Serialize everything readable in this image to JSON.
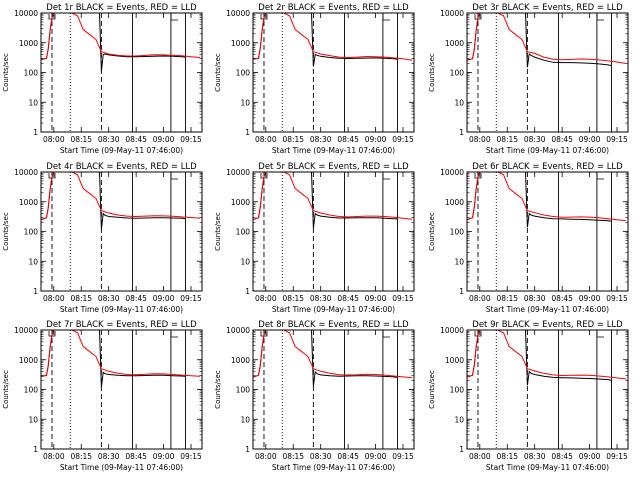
{
  "figure": {
    "panel_titles": [
      "Det 1r BLACK = Events, RED = LLD",
      "Det 2r BLACK = Events, RED = LLD",
      "Det 3r BLACK = Events, RED = LLD",
      "Det 4r BLACK = Events, RED = LLD",
      "Det 5r BLACK = Events, RED = LLD",
      "Det 6r BLACK = Events, RED = LLD",
      "Det 7r BLACK = Events, RED = LLD",
      "Det 8r BLACK = Events, RED = LLD",
      "Det 9r BLACK = Events, RED = LLD"
    ],
    "xlabel": "Start Time (09-May-11 07:46:00)",
    "ylabel": "Counts/sec",
    "colors": {
      "events": "#000000",
      "lld": "#ff0000",
      "axes": "#000000"
    }
  },
  "chart_data": {
    "type": "line",
    "yscale": "log",
    "xlim": [
      "07:53",
      "09:21"
    ],
    "ylim": [
      1,
      10000
    ],
    "x_ticks": [
      "08:00",
      "08:15",
      "08:30",
      "08:45",
      "09:00",
      "09:15"
    ],
    "y_ticks": [
      "1",
      "10",
      "100",
      "1000",
      "10000"
    ],
    "series": [
      {
        "name": "Events",
        "color": "#000000"
      },
      {
        "name": "LLD",
        "color": "#ff0000"
      }
    ],
    "vertical_markers": [
      {
        "time": "07:59",
        "style": "dashed"
      },
      {
        "time": "08:09",
        "style": "dotted"
      },
      {
        "time": "08:26",
        "style": "dashed"
      },
      {
        "time": "08:43",
        "style": "solid"
      },
      {
        "time": "09:04",
        "style": "solid"
      },
      {
        "time": "09:12",
        "style": "solid"
      }
    ],
    "panels": [
      {
        "events_x": [
          "07:53",
          "07:56",
          "07:57",
          "07:58",
          "07:59",
          "08:00",
          "08:02",
          "08:05",
          "08:10",
          "08:15",
          "08:20",
          "08:25",
          "08:26",
          "08:27",
          "08:28",
          "08:30",
          "08:35",
          "08:40",
          "08:45",
          "08:50",
          "08:55",
          "09:00",
          "09:05",
          "09:10",
          "09:12"
        ],
        "events_y": [
          270,
          300,
          650,
          2600,
          7000,
          10000,
          10000,
          10000,
          10000,
          10000,
          10000,
          10000,
          110,
          400,
          420,
          390,
          360,
          340,
          340,
          345,
          350,
          360,
          350,
          340,
          330
        ],
        "lld_x": [
          "07:53",
          "07:56",
          "07:57",
          "07:58",
          "07:59",
          "08:00",
          "08:02",
          "08:05",
          "08:10",
          "08:13",
          "08:16",
          "08:20",
          "08:23",
          "08:26",
          "08:30",
          "08:35",
          "08:40",
          "08:45",
          "08:50",
          "08:55",
          "09:00",
          "09:05",
          "09:10",
          "09:15",
          "09:20"
        ],
        "lld_y": [
          270,
          300,
          650,
          2600,
          7000,
          10000,
          10000,
          10000,
          10000,
          8000,
          2800,
          1800,
          1300,
          500,
          420,
          380,
          360,
          360,
          375,
          395,
          390,
          380,
          365,
          340,
          320
        ]
      },
      {
        "events_x": [
          "07:53",
          "07:56",
          "07:57",
          "07:58",
          "07:59",
          "08:00",
          "08:02",
          "08:05",
          "08:10",
          "08:15",
          "08:20",
          "08:25",
          "08:26",
          "08:27",
          "08:28",
          "08:30",
          "08:35",
          "08:40",
          "08:45",
          "08:50",
          "08:55",
          "09:00",
          "09:05",
          "09:10",
          "09:12"
        ],
        "events_y": [
          280,
          300,
          650,
          2600,
          7000,
          10000,
          10000,
          10000,
          10000,
          10000,
          10000,
          10000,
          160,
          400,
          380,
          350,
          320,
          300,
          295,
          300,
          305,
          310,
          300,
          290,
          280
        ],
        "lld_x": [
          "07:53",
          "07:56",
          "07:57",
          "07:58",
          "07:59",
          "08:00",
          "08:02",
          "08:05",
          "08:10",
          "08:13",
          "08:16",
          "08:20",
          "08:23",
          "08:26",
          "08:30",
          "08:35",
          "08:40",
          "08:45",
          "08:50",
          "08:55",
          "09:00",
          "09:05",
          "09:10",
          "09:15",
          "09:20"
        ],
        "lld_y": [
          280,
          300,
          650,
          2600,
          7000,
          10000,
          10000,
          10000,
          10000,
          8000,
          2800,
          1800,
          1300,
          500,
          420,
          370,
          330,
          320,
          330,
          345,
          340,
          330,
          310,
          290,
          260
        ]
      },
      {
        "events_x": [
          "07:53",
          "07:56",
          "07:57",
          "07:58",
          "07:59",
          "08:00",
          "08:02",
          "08:05",
          "08:10",
          "08:15",
          "08:20",
          "08:25",
          "08:26",
          "08:27",
          "08:28",
          "08:30",
          "08:35",
          "08:40",
          "08:45",
          "08:50",
          "08:55",
          "09:00",
          "09:05",
          "09:10",
          "09:12"
        ],
        "events_y": [
          260,
          290,
          600,
          2500,
          7000,
          10000,
          10000,
          10000,
          10000,
          10000,
          10000,
          10000,
          150,
          420,
          380,
          330,
          260,
          220,
          215,
          215,
          210,
          205,
          195,
          180,
          170
        ],
        "lld_x": [
          "07:53",
          "07:56",
          "07:57",
          "07:58",
          "07:59",
          "08:00",
          "08:02",
          "08:05",
          "08:10",
          "08:13",
          "08:16",
          "08:20",
          "08:23",
          "08:26",
          "08:30",
          "08:35",
          "08:40",
          "08:45",
          "08:50",
          "08:55",
          "09:00",
          "09:05",
          "09:10",
          "09:15",
          "09:20"
        ],
        "lld_y": [
          260,
          290,
          600,
          2500,
          7000,
          10000,
          10000,
          10000,
          10000,
          8000,
          2800,
          1800,
          1300,
          500,
          440,
          330,
          280,
          270,
          275,
          285,
          280,
          265,
          245,
          225,
          200
        ]
      },
      {
        "events_x": [
          "07:53",
          "07:56",
          "07:57",
          "07:58",
          "07:59",
          "08:00",
          "08:02",
          "08:05",
          "08:10",
          "08:15",
          "08:20",
          "08:25",
          "08:26",
          "08:27",
          "08:28",
          "08:30",
          "08:35",
          "08:40",
          "08:45",
          "08:50",
          "08:55",
          "09:00",
          "09:05",
          "09:10",
          "09:12"
        ],
        "events_y": [
          250,
          290,
          650,
          2600,
          7000,
          10000,
          10000,
          10000,
          10000,
          10000,
          10000,
          10000,
          120,
          400,
          350,
          320,
          300,
          285,
          280,
          285,
          290,
          290,
          285,
          280,
          270
        ],
        "lld_x": [
          "07:53",
          "07:56",
          "07:57",
          "07:58",
          "07:59",
          "08:00",
          "08:02",
          "08:05",
          "08:10",
          "08:13",
          "08:16",
          "08:20",
          "08:23",
          "08:26",
          "08:30",
          "08:35",
          "08:40",
          "08:45",
          "08:50",
          "08:55",
          "09:00",
          "09:05",
          "09:10",
          "09:15",
          "09:20"
        ],
        "lld_y": [
          250,
          290,
          650,
          2600,
          7000,
          10000,
          10000,
          10000,
          10000,
          8000,
          2800,
          1800,
          1300,
          500,
          420,
          360,
          330,
          320,
          330,
          340,
          335,
          325,
          310,
          295,
          280
        ]
      },
      {
        "events_x": [
          "07:53",
          "07:56",
          "07:57",
          "07:58",
          "07:59",
          "08:00",
          "08:02",
          "08:05",
          "08:10",
          "08:15",
          "08:20",
          "08:25",
          "08:26",
          "08:27",
          "08:28",
          "08:30",
          "08:35",
          "08:40",
          "08:45",
          "08:50",
          "08:55",
          "09:00",
          "09:05",
          "09:10",
          "09:12"
        ],
        "events_y": [
          250,
          290,
          650,
          2600,
          7000,
          10000,
          10000,
          10000,
          10000,
          10000,
          10000,
          10000,
          130,
          400,
          360,
          330,
          300,
          285,
          285,
          290,
          290,
          290,
          280,
          270,
          265
        ],
        "lld_x": [
          "07:53",
          "07:56",
          "07:57",
          "07:58",
          "07:59",
          "08:00",
          "08:02",
          "08:05",
          "08:10",
          "08:13",
          "08:16",
          "08:20",
          "08:23",
          "08:26",
          "08:30",
          "08:35",
          "08:40",
          "08:45",
          "08:50",
          "08:55",
          "09:00",
          "09:05",
          "09:10",
          "09:15",
          "09:20"
        ],
        "lld_y": [
          250,
          290,
          650,
          2600,
          7000,
          10000,
          10000,
          10000,
          10000,
          8000,
          2800,
          1800,
          1300,
          500,
          420,
          360,
          320,
          310,
          320,
          330,
          330,
          320,
          300,
          280,
          260
        ]
      },
      {
        "events_x": [
          "07:53",
          "07:56",
          "07:57",
          "07:58",
          "07:59",
          "08:00",
          "08:02",
          "08:05",
          "08:10",
          "08:15",
          "08:20",
          "08:25",
          "08:26",
          "08:27",
          "08:28",
          "08:30",
          "08:35",
          "08:40",
          "08:45",
          "08:50",
          "08:55",
          "09:00",
          "09:05",
          "09:10",
          "09:12"
        ],
        "events_y": [
          250,
          290,
          650,
          2600,
          7000,
          10000,
          10000,
          10000,
          10000,
          10000,
          10000,
          10000,
          140,
          400,
          360,
          330,
          290,
          270,
          265,
          260,
          255,
          250,
          240,
          230,
          220
        ],
        "lld_x": [
          "07:53",
          "07:56",
          "07:57",
          "07:58",
          "07:59",
          "08:00",
          "08:02",
          "08:05",
          "08:10",
          "08:13",
          "08:16",
          "08:20",
          "08:23",
          "08:26",
          "08:30",
          "08:35",
          "08:40",
          "08:45",
          "08:50",
          "08:55",
          "09:00",
          "09:05",
          "09:10",
          "09:15",
          "09:20"
        ],
        "lld_y": [
          250,
          290,
          650,
          2600,
          7000,
          10000,
          10000,
          10000,
          10000,
          8000,
          2800,
          1800,
          1300,
          500,
          430,
          360,
          320,
          300,
          305,
          310,
          305,
          290,
          270,
          250,
          230
        ]
      },
      {
        "events_x": [
          "07:53",
          "07:56",
          "07:57",
          "07:58",
          "07:59",
          "08:00",
          "08:02",
          "08:05",
          "08:10",
          "08:15",
          "08:20",
          "08:25",
          "08:26",
          "08:27",
          "08:28",
          "08:30",
          "08:35",
          "08:40",
          "08:45",
          "08:50",
          "08:55",
          "09:00",
          "09:05",
          "09:10",
          "09:12"
        ],
        "events_y": [
          270,
          300,
          650,
          2600,
          7000,
          10000,
          10000,
          10000,
          10000,
          10000,
          10000,
          10000,
          120,
          380,
          340,
          320,
          300,
          290,
          290,
          295,
          300,
          300,
          290,
          285,
          275
        ],
        "lld_x": [
          "07:53",
          "07:56",
          "07:57",
          "07:58",
          "07:59",
          "08:00",
          "08:02",
          "08:05",
          "08:10",
          "08:13",
          "08:16",
          "08:20",
          "08:23",
          "08:26",
          "08:30",
          "08:35",
          "08:40",
          "08:45",
          "08:50",
          "08:55",
          "09:00",
          "09:05",
          "09:10",
          "09:15",
          "09:20"
        ],
        "lld_y": [
          270,
          300,
          650,
          2600,
          7000,
          10000,
          10000,
          10000,
          10000,
          8000,
          2800,
          1800,
          1300,
          500,
          410,
          350,
          320,
          315,
          325,
          340,
          335,
          320,
          305,
          290,
          280
        ]
      },
      {
        "events_x": [
          "07:53",
          "07:56",
          "07:57",
          "07:58",
          "07:59",
          "08:00",
          "08:02",
          "08:05",
          "08:10",
          "08:15",
          "08:20",
          "08:25",
          "08:26",
          "08:27",
          "08:28",
          "08:30",
          "08:35",
          "08:40",
          "08:45",
          "08:50",
          "08:55",
          "09:00",
          "09:05",
          "09:10",
          "09:12"
        ],
        "events_y": [
          260,
          300,
          650,
          2600,
          7000,
          10000,
          10000,
          10000,
          10000,
          10000,
          10000,
          10000,
          130,
          390,
          340,
          310,
          290,
          280,
          285,
          290,
          290,
          285,
          275,
          265,
          255
        ],
        "lld_x": [
          "07:53",
          "07:56",
          "07:57",
          "07:58",
          "07:59",
          "08:00",
          "08:02",
          "08:05",
          "08:10",
          "08:13",
          "08:16",
          "08:20",
          "08:23",
          "08:26",
          "08:30",
          "08:35",
          "08:40",
          "08:45",
          "08:50",
          "08:55",
          "09:00",
          "09:05",
          "09:10",
          "09:15",
          "09:20"
        ],
        "lld_y": [
          260,
          300,
          650,
          2600,
          7000,
          10000,
          10000,
          10000,
          10000,
          8000,
          2800,
          1800,
          1300,
          500,
          410,
          350,
          315,
          310,
          315,
          325,
          320,
          305,
          285,
          265,
          250
        ]
      },
      {
        "events_x": [
          "07:53",
          "07:56",
          "07:57",
          "07:58",
          "07:59",
          "08:00",
          "08:02",
          "08:05",
          "08:10",
          "08:15",
          "08:20",
          "08:25",
          "08:26",
          "08:27",
          "08:28",
          "08:30",
          "08:35",
          "08:40",
          "08:45",
          "08:50",
          "08:55",
          "09:00",
          "09:05",
          "09:10",
          "09:12"
        ],
        "events_y": [
          260,
          300,
          650,
          2600,
          7000,
          10000,
          10000,
          10000,
          10000,
          10000,
          10000,
          10000,
          140,
          400,
          350,
          320,
          280,
          255,
          250,
          245,
          240,
          235,
          225,
          215,
          205
        ],
        "lld_x": [
          "07:53",
          "07:56",
          "07:57",
          "07:58",
          "07:59",
          "08:00",
          "08:02",
          "08:05",
          "08:10",
          "08:13",
          "08:16",
          "08:20",
          "08:23",
          "08:26",
          "08:30",
          "08:35",
          "08:40",
          "08:45",
          "08:50",
          "08:55",
          "09:00",
          "09:05",
          "09:10",
          "09:15",
          "09:20"
        ],
        "lld_y": [
          260,
          300,
          650,
          2600,
          7000,
          10000,
          10000,
          10000,
          10000,
          8000,
          2800,
          1800,
          1300,
          500,
          420,
          350,
          310,
          295,
          300,
          305,
          300,
          285,
          265,
          245,
          225
        ]
      }
    ]
  }
}
